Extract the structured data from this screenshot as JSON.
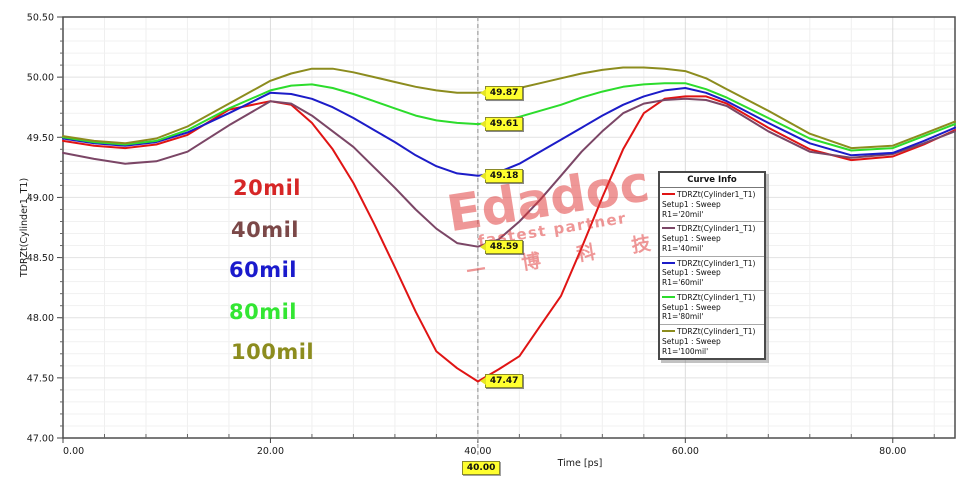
{
  "axes": {
    "y_title": "TDRZt(Cylinder1_T1)",
    "x_title": "Time [ps]",
    "y_tick_labels": [
      "50.50",
      "50.00",
      "49.50",
      "49.00",
      "48.50",
      "48.00",
      "47.50",
      "47.00"
    ],
    "x_tick_labels": [
      "0.00",
      "20.00",
      "40.00",
      "60.00",
      "80.00"
    ]
  },
  "chart_data": {
    "type": "line",
    "title": "",
    "xlabel": "Time [ps]",
    "ylabel": "TDRZt(Cylinder1_T1)",
    "xlim": [
      0,
      86
    ],
    "ylim": [
      47.0,
      50.5
    ],
    "x_major_ticks": [
      0,
      20,
      40,
      60,
      80
    ],
    "x_minor_tick_step": 4,
    "y_major_ticks": [
      47.0,
      47.5,
      48.0,
      48.5,
      49.0,
      49.5,
      50.0,
      50.5
    ],
    "y_minor_tick_step": 0.1,
    "grid": true,
    "legend_position": "right-middle",
    "x": [
      0,
      3,
      6,
      9,
      12,
      16,
      20,
      22,
      24,
      26,
      28,
      30,
      32,
      34,
      36,
      38,
      40,
      42,
      44,
      46,
      48,
      50,
      52,
      54,
      56,
      58,
      60,
      62,
      64,
      68,
      72,
      76,
      80,
      83,
      86
    ],
    "series": [
      {
        "name": "TDRZt(Cylinder1_T1)",
        "setup": "Setup1 : Sweep",
        "variation": "R1='20mil'",
        "short_label": "20mil",
        "color": "#e01414",
        "values": [
          49.47,
          49.43,
          49.41,
          49.44,
          49.52,
          49.73,
          49.8,
          49.77,
          49.62,
          49.4,
          49.12,
          48.78,
          48.42,
          48.05,
          47.72,
          47.58,
          47.47,
          47.57,
          47.68,
          47.93,
          48.18,
          48.58,
          49.0,
          49.4,
          49.7,
          49.82,
          49.84,
          49.84,
          49.78,
          49.58,
          49.4,
          49.31,
          49.34,
          49.44,
          49.56
        ]
      },
      {
        "name": "TDRZt(Cylinder1_T1)",
        "setup": "Setup1 : Sweep",
        "variation": "R1='40mil'",
        "short_label": "40mil",
        "color": "#7b4666",
        "values": [
          49.37,
          49.32,
          49.28,
          49.3,
          49.38,
          49.6,
          49.8,
          49.78,
          49.68,
          49.55,
          49.42,
          49.25,
          49.08,
          48.9,
          48.74,
          48.62,
          48.59,
          48.65,
          48.8,
          48.98,
          49.18,
          49.38,
          49.55,
          49.7,
          49.78,
          49.81,
          49.82,
          49.81,
          49.76,
          49.55,
          49.38,
          49.33,
          49.36,
          49.45,
          49.55
        ]
      },
      {
        "name": "TDRZt(Cylinder1_T1)",
        "setup": "Setup1 : Sweep",
        "variation": "R1='60mil'",
        "short_label": "60mil",
        "color": "#1c1cc8",
        "values": [
          49.49,
          49.45,
          49.43,
          49.46,
          49.54,
          49.7,
          49.87,
          49.86,
          49.82,
          49.75,
          49.66,
          49.56,
          49.46,
          49.35,
          49.26,
          49.2,
          49.18,
          49.21,
          49.28,
          49.38,
          49.48,
          49.58,
          49.68,
          49.77,
          49.84,
          49.89,
          49.91,
          49.87,
          49.8,
          49.62,
          49.45,
          49.35,
          49.37,
          49.47,
          49.58
        ]
      },
      {
        "name": "TDRZt(Cylinder1_T1)",
        "setup": "Setup1 : Sweep",
        "variation": "R1='80mil'",
        "short_label": "80mil",
        "color": "#2cdc2c",
        "values": [
          49.5,
          49.46,
          49.44,
          49.47,
          49.56,
          49.74,
          49.89,
          49.93,
          49.94,
          49.91,
          49.86,
          49.8,
          49.74,
          49.68,
          49.64,
          49.62,
          49.61,
          49.63,
          49.67,
          49.72,
          49.77,
          49.83,
          49.88,
          49.92,
          49.94,
          49.95,
          49.95,
          49.9,
          49.83,
          49.66,
          49.49,
          49.39,
          49.41,
          49.51,
          49.61
        ]
      },
      {
        "name": "TDRZt(Cylinder1_T1)",
        "setup": "Setup1 : Sweep",
        "variation": "R1='100mil'",
        "short_label": "100mil",
        "color": "#8c8c1e",
        "values": [
          49.51,
          49.47,
          49.45,
          49.49,
          49.59,
          49.78,
          49.97,
          50.03,
          50.07,
          50.07,
          50.04,
          50.0,
          49.96,
          49.92,
          49.89,
          49.87,
          49.87,
          49.88,
          49.91,
          49.95,
          49.99,
          50.03,
          50.06,
          50.08,
          50.08,
          50.07,
          50.05,
          49.99,
          49.9,
          49.72,
          49.53,
          49.41,
          49.43,
          49.53,
          49.63
        ]
      }
    ],
    "cursor": {
      "x": 40,
      "label": "40.00"
    },
    "point_labels": [
      {
        "series": "100mil",
        "x": 40,
        "value": 49.87,
        "text": "49.87"
      },
      {
        "series": "80mil",
        "x": 40,
        "value": 49.61,
        "text": "49.61"
      },
      {
        "series": "60mil",
        "x": 40,
        "value": 49.18,
        "text": "49.18"
      },
      {
        "series": "40mil",
        "x": 40,
        "value": 48.59,
        "text": "48.59"
      },
      {
        "series": "20mil",
        "x": 40,
        "value": 47.47,
        "text": "47.47"
      }
    ]
  },
  "legend": {
    "title": "Curve Info",
    "entries": [
      {
        "color": "#e01414",
        "name": "TDRZt(Cylinder1_T1)",
        "line2": "Setup1 : Sweep",
        "line3": "R1='20mil'"
      },
      {
        "color": "#7b4666",
        "name": "TDRZt(Cylinder1_T1)",
        "line2": "Setup1 : Sweep",
        "line3": "R1='40mil'"
      },
      {
        "color": "#1c1cc8",
        "name": "TDRZt(Cylinder1_T1)",
        "line2": "Setup1 : Sweep",
        "line3": "R1='60mil'"
      },
      {
        "color": "#2cdc2c",
        "name": "TDRZt(Cylinder1_T1)",
        "line2": "Setup1 : Sweep",
        "line3": "R1='80mil'"
      },
      {
        "color": "#8c8c1e",
        "name": "TDRZt(Cylinder1_T1)",
        "line2": "Setup1 : Sweep",
        "line3": "R1='100mil'"
      }
    ]
  },
  "series_labels": [
    {
      "text": "20mil",
      "color": "#d62626"
    },
    {
      "text": "40mil",
      "color": "#7b4848"
    },
    {
      "text": "60mil",
      "color": "#1a1acc"
    },
    {
      "text": "80mil",
      "color": "#33e633"
    },
    {
      "text": "100mil",
      "color": "#8c8c1e"
    }
  ],
  "watermark": {
    "brand": "Edadoc",
    "slogan": "fastest partner",
    "cn": "一 博 科 技"
  }
}
